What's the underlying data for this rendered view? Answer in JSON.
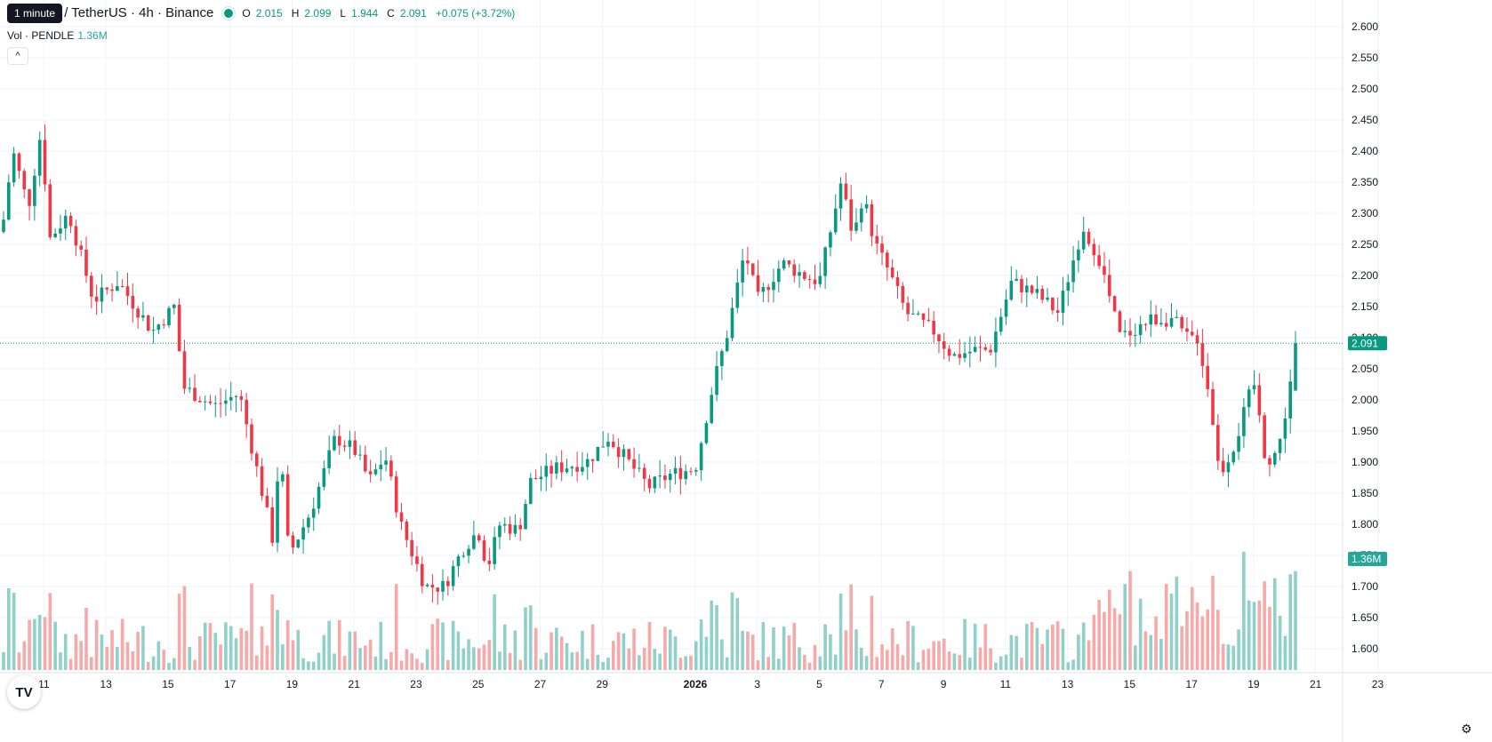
{
  "tooltip": "1 minute",
  "header": {
    "symbol_title": "PENDLE / TetherUS · 4h · Binance",
    "ohlc": [
      {
        "label": "O",
        "value": "2.015"
      },
      {
        "label": "H",
        "value": "2.099"
      },
      {
        "label": "L",
        "value": "1.944"
      },
      {
        "label": "C",
        "value": "2.091"
      }
    ],
    "change": "+0.075 (+3.72%)"
  },
  "volume_legend": {
    "label": "Vol · PENDLE",
    "value": "1.36M"
  },
  "price_label": "2.091",
  "volume_label": "1.36M",
  "colors": {
    "up": "#089981",
    "down": "#f23645",
    "vol_up": "#8fd1c8",
    "vol_down": "#f7a9a9",
    "grid": "#f0f3fa"
  },
  "chart_data": {
    "type": "candlestick",
    "y_axis": {
      "min": 1.575,
      "max": 2.6,
      "ticks": [
        "2.600",
        "2.550",
        "2.500",
        "2.450",
        "2.400",
        "2.350",
        "2.300",
        "2.250",
        "2.200",
        "2.150",
        "2.100",
        "2.050",
        "2.000",
        "1.950",
        "1.900",
        "1.850",
        "1.800",
        "1.750",
        "1.700",
        "1.650",
        "1.600"
      ]
    },
    "x_axis": {
      "tick_labels": [
        "11",
        "13",
        "15",
        "17",
        "19",
        "21",
        "23",
        "25",
        "27",
        "29",
        "2026",
        "3",
        "5",
        "7",
        "9",
        "11",
        "13",
        "15",
        "17",
        "19",
        "21",
        "23"
      ]
    },
    "last_price": 2.091,
    "current_volume": "1.36M",
    "anchors": [
      {
        "day": 9.7,
        "close": 2.29
      },
      {
        "day": 10.0,
        "close": 2.4
      },
      {
        "day": 10.5,
        "close": 2.31
      },
      {
        "day": 10.9,
        "close": 2.43
      },
      {
        "day": 11.2,
        "close": 2.26
      },
      {
        "day": 11.8,
        "close": 2.3
      },
      {
        "day": 12.6,
        "close": 2.16
      },
      {
        "day": 13.4,
        "close": 2.19
      },
      {
        "day": 14.5,
        "close": 2.11
      },
      {
        "day": 15.2,
        "close": 2.15
      },
      {
        "day": 15.5,
        "close": 2.02
      },
      {
        "day": 16.5,
        "close": 1.99
      },
      {
        "day": 17.3,
        "close": 2.01
      },
      {
        "day": 18.0,
        "close": 1.86
      },
      {
        "day": 18.4,
        "close": 1.77
      },
      {
        "day": 18.6,
        "close": 1.93
      },
      {
        "day": 18.9,
        "close": 1.75
      },
      {
        "day": 19.6,
        "close": 1.82
      },
      {
        "day": 20.4,
        "close": 1.94
      },
      {
        "day": 21.0,
        "close": 1.92
      },
      {
        "day": 21.5,
        "close": 1.87
      },
      {
        "day": 22.0,
        "close": 1.91
      },
      {
        "day": 22.5,
        "close": 1.8
      },
      {
        "day": 23.3,
        "close": 1.7
      },
      {
        "day": 23.9,
        "close": 1.7
      },
      {
        "day": 24.5,
        "close": 1.76
      },
      {
        "day": 25.0,
        "close": 1.79
      },
      {
        "day": 25.3,
        "close": 1.73
      },
      {
        "day": 25.7,
        "close": 1.8
      },
      {
        "day": 26.3,
        "close": 1.79
      },
      {
        "day": 26.7,
        "close": 1.87
      },
      {
        "day": 27.5,
        "close": 1.89
      },
      {
        "day": 28.5,
        "close": 1.9
      },
      {
        "day": 29.2,
        "close": 1.94
      },
      {
        "day": 30.5,
        "close": 1.86
      },
      {
        "day": 31.2,
        "close": 1.88
      },
      {
        "day": 32.0,
        "close": 1.89
      },
      {
        "day": 32.6,
        "close": 2.03
      },
      {
        "day": 33.0,
        "close": 2.1
      },
      {
        "day": 33.6,
        "close": 2.24
      },
      {
        "day": 34.0,
        "close": 2.16
      },
      {
        "day": 34.8,
        "close": 2.22
      },
      {
        "day": 35.5,
        "close": 2.2
      },
      {
        "day": 36.0,
        "close": 2.19
      },
      {
        "day": 36.7,
        "close": 2.35
      },
      {
        "day": 37.1,
        "close": 2.26
      },
      {
        "day": 37.4,
        "close": 2.33
      },
      {
        "day": 37.8,
        "close": 2.25
      },
      {
        "day": 38.2,
        "close": 2.21
      },
      {
        "day": 38.8,
        "close": 2.14
      },
      {
        "day": 39.7,
        "close": 2.11
      },
      {
        "day": 40.3,
        "close": 2.07
      },
      {
        "day": 41.0,
        "close": 2.08
      },
      {
        "day": 41.5,
        "close": 2.08
      },
      {
        "day": 42.2,
        "close": 2.19
      },
      {
        "day": 43.0,
        "close": 2.17
      },
      {
        "day": 43.7,
        "close": 2.14
      },
      {
        "day": 44.5,
        "close": 2.28
      },
      {
        "day": 45.0,
        "close": 2.23
      },
      {
        "day": 45.7,
        "close": 2.1
      },
      {
        "day": 46.7,
        "close": 2.13
      },
      {
        "day": 47.4,
        "close": 2.13
      },
      {
        "day": 47.8,
        "close": 2.1
      },
      {
        "day": 48.2,
        "close": 2.1
      },
      {
        "day": 48.6,
        "close": 2.0
      },
      {
        "day": 48.9,
        "close": 1.88
      },
      {
        "day": 49.4,
        "close": 1.93
      },
      {
        "day": 50.0,
        "close": 2.03
      },
      {
        "day": 50.4,
        "close": 1.9
      },
      {
        "day": 50.8,
        "close": 1.92
      },
      {
        "day": 51.1,
        "close": 2.0
      },
      {
        "day": 51.35,
        "close": 2.091
      }
    ]
  }
}
